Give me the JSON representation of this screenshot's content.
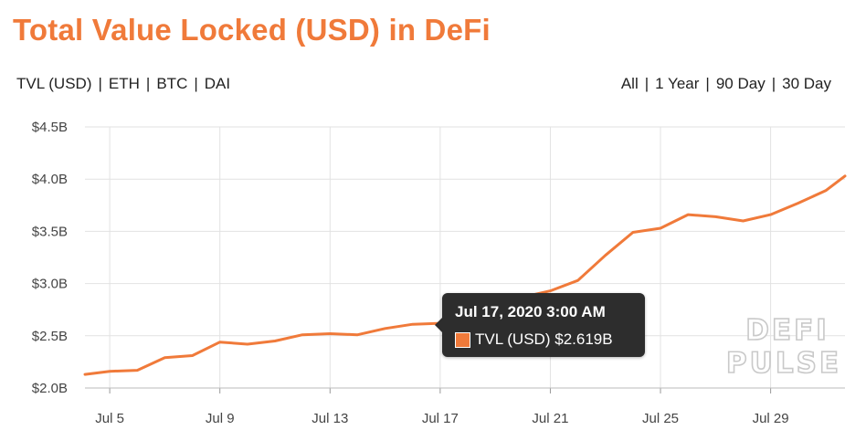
{
  "header": {
    "title": "Total Value Locked (USD) in DeFi"
  },
  "asset_options": [
    {
      "label": "TVL (USD)",
      "active": true
    },
    {
      "label": "ETH",
      "active": false
    },
    {
      "label": "BTC",
      "active": false
    },
    {
      "label": "DAI",
      "active": false
    }
  ],
  "range_options": [
    {
      "label": "All",
      "active": false
    },
    {
      "label": "1 Year",
      "active": false
    },
    {
      "label": "90 Day",
      "active": false
    },
    {
      "label": "30 Day",
      "active": true
    }
  ],
  "tooltip": {
    "date": "Jul 17, 2020 3:00 AM",
    "series": "TVL (USD)",
    "value": "$2.619B"
  },
  "watermark": {
    "line1": "DEFI",
    "line2": "PULSE"
  },
  "colors": {
    "accent": "#f07a3a",
    "grid": "#e2e2e2",
    "tooltip_bg": "#2d2d2d"
  },
  "chart_data": {
    "type": "line",
    "title": "Total Value Locked (USD) in DeFi",
    "xlabel": "",
    "ylabel": "",
    "x_ticks": [
      "Jul 5",
      "Jul 9",
      "Jul 13",
      "Jul 17",
      "Jul 21",
      "Jul 25",
      "Jul 29"
    ],
    "y_ticks": [
      "$2.0B",
      "$2.5B",
      "$3.0B",
      "$3.5B",
      "$4.0B",
      "$4.5B"
    ],
    "ylim": [
      2.0,
      4.5
    ],
    "xlim": [
      4.1,
      31.7
    ],
    "y_unit": "USD billions",
    "grid": true,
    "series": [
      {
        "name": "TVL (USD)",
        "x_day": [
          4.1,
          5,
          6,
          7,
          8,
          9,
          10,
          11,
          12,
          13,
          14,
          15,
          16,
          17,
          18,
          19,
          20,
          21,
          22,
          23,
          24,
          25,
          26,
          27,
          28,
          29,
          30,
          31,
          31.7
        ],
        "values": [
          2.13,
          2.16,
          2.17,
          2.29,
          2.31,
          2.44,
          2.42,
          2.45,
          2.51,
          2.52,
          2.51,
          2.57,
          2.61,
          2.62,
          2.68,
          2.79,
          2.87,
          2.93,
          3.03,
          3.27,
          3.49,
          3.53,
          3.66,
          3.64,
          3.6,
          3.66,
          3.77,
          3.89,
          4.03
        ]
      }
    ]
  }
}
